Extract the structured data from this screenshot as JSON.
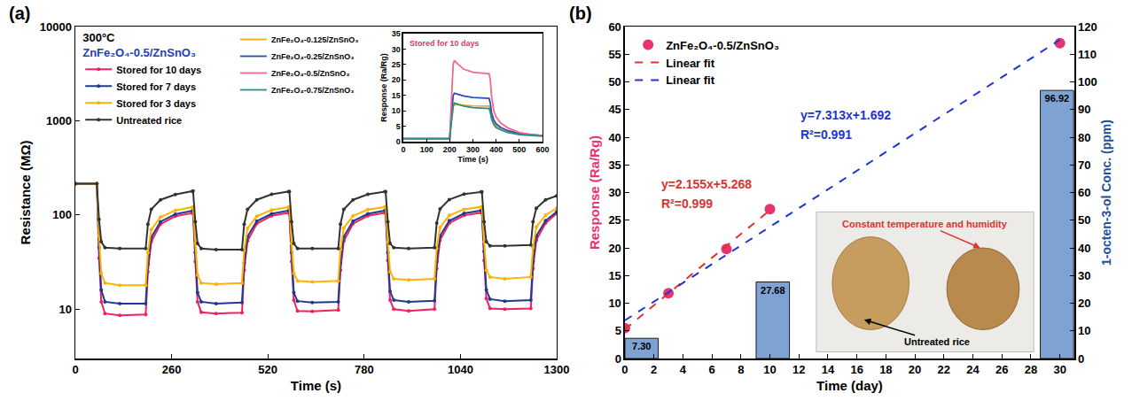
{
  "chart_data": [
    {
      "label": "(a)",
      "type": "line",
      "log": "y",
      "grid": false,
      "legend": "upper left",
      "legend_title": [
        "300°C",
        "ZnFe₂O₄-0.5/ZnSnO₃"
      ],
      "x_label": "Time (s)",
      "y_label": "Resistance (MΩ)",
      "xlim": [
        0,
        1300
      ],
      "xticks": [
        0,
        260,
        520,
        780,
        1040,
        1300
      ],
      "ylim": [
        3,
        10000
      ],
      "yticks": [
        10,
        100,
        1000,
        10000
      ],
      "x": [
        0,
        58,
        64,
        70,
        80,
        120,
        190,
        196,
        205,
        230,
        270,
        316,
        318,
        324,
        330,
        340,
        380,
        450,
        456,
        465,
        490,
        530,
        576,
        578,
        584,
        590,
        600,
        640,
        710,
        716,
        725,
        750,
        790,
        836,
        838,
        844,
        850,
        860,
        900,
        970,
        976,
        985,
        1010,
        1050,
        1096,
        1098,
        1104,
        1110,
        1120,
        1160,
        1230,
        1236,
        1245,
        1270,
        1300
      ],
      "series": [
        {
          "name": "Stored for 10 days",
          "color": "#f0215e",
          "marker": "circle",
          "values": [
            215,
            215,
            35,
            12,
            9,
            8.6,
            8.8,
            25,
            52,
            80,
            97,
            104,
            105,
            32,
            12,
            9.3,
            9,
            9.2,
            26,
            53,
            81,
            98,
            105,
            106,
            32,
            12.5,
            9.6,
            9.5,
            9.8,
            26,
            53,
            81,
            98,
            105,
            106,
            33,
            12.5,
            10,
            9.6,
            10,
            27,
            54,
            82,
            99,
            106,
            106,
            33,
            13,
            10.2,
            10,
            10.2,
            27,
            54,
            82,
            104
          ]
        },
        {
          "name": "Stored for 7 days",
          "color": "#1f3b8f",
          "marker": "circle",
          "values": [
            215,
            215,
            45,
            16,
            12,
            11.5,
            11.5,
            30,
            58,
            85,
            102,
            110,
            111,
            40,
            15,
            12,
            11.5,
            11.8,
            31,
            59,
            86,
            103,
            111,
            112,
            40,
            15,
            12.2,
            11.8,
            12,
            31,
            59,
            86,
            103,
            112,
            112,
            40,
            15.5,
            12.5,
            12,
            12.3,
            32,
            60,
            87,
            104,
            112,
            112,
            41,
            16,
            12.8,
            12.2,
            12.5,
            32,
            60,
            87,
            108
          ]
        },
        {
          "name": "Stored for 3 days",
          "color": "#ffb300",
          "marker": "circle",
          "values": [
            215,
            215,
            60,
            24,
            19,
            18,
            18,
            40,
            70,
            95,
            112,
            120,
            122,
            50,
            23,
            19,
            18.5,
            19,
            42,
            72,
            97,
            113,
            121,
            122,
            50,
            24,
            20,
            19.5,
            20,
            43,
            73,
            98,
            114,
            122,
            122,
            52,
            25,
            21,
            20.5,
            21,
            44,
            74,
            99,
            115,
            122,
            122,
            52,
            26,
            22,
            21,
            22,
            45,
            75,
            100,
            118
          ]
        },
        {
          "name": "Untreated rice",
          "color": "#333333",
          "marker": "circle",
          "values": [
            215,
            215,
            90,
            52,
            45,
            44,
            44,
            80,
            115,
            145,
            165,
            178,
            180,
            85,
            50,
            44,
            43,
            43,
            80,
            115,
            145,
            166,
            177,
            178,
            85,
            50,
            44,
            44,
            44,
            80,
            115,
            145,
            166,
            177,
            177,
            85,
            50,
            45,
            44,
            45,
            82,
            116,
            146,
            167,
            176,
            176,
            85,
            52,
            47,
            47,
            48,
            85,
            118,
            145,
            160
          ]
        }
      ]
    },
    {
      "type": "line",
      "title": "Stored for 10 days",
      "grid": false,
      "legend": "left",
      "x_label": "Time (s)",
      "y_label": "Response (Ra/Rg)",
      "xlim": [
        0,
        600
      ],
      "xticks": [
        0,
        100,
        200,
        300,
        400,
        500,
        600
      ],
      "ylim": [
        0,
        35
      ],
      "yticks": [
        0,
        5,
        10,
        15,
        20,
        25,
        30,
        35
      ],
      "x": [
        0,
        100,
        200,
        205,
        210,
        215,
        220,
        230,
        260,
        300,
        370,
        375,
        380,
        390,
        400,
        420,
        450,
        500,
        550,
        600
      ],
      "series": [
        {
          "name": "ZnFe₂O₄-0.125/ZnSnO₃",
          "color": "#f5a623",
          "values": [
            1,
            1,
            1,
            5,
            9.5,
            11.5,
            12,
            12,
            11.8,
            11.6,
            11.5,
            10,
            8,
            6,
            5,
            4,
            3.2,
            2.5,
            2.1,
            1.9
          ]
        },
        {
          "name": "ZnFe₂O₄-0.25/ZnSnO₃",
          "color": "#2a4fb5",
          "values": [
            1,
            1,
            1,
            6,
            12,
            15,
            15.7,
            15.5,
            14.8,
            14.3,
            14,
            12.5,
            9.5,
            7,
            5.8,
            4.6,
            3.6,
            2.6,
            2.2,
            2
          ]
        },
        {
          "name": "ZnFe₂O₄-0.5/ZnSnO₃",
          "color": "#f06a8a",
          "values": [
            1,
            1,
            1,
            10,
            20,
            25,
            26.3,
            25.5,
            23.5,
            22.5,
            22,
            20,
            15,
            10,
            8,
            6,
            4.5,
            3,
            2.3,
            2
          ]
        },
        {
          "name": "ZnFe₂O₄-0.75/ZnSnO₃",
          "color": "#2e8b8b",
          "values": [
            1,
            1,
            1,
            5,
            9.5,
            11.5,
            12.5,
            12.3,
            11.5,
            11,
            10.7,
            9.5,
            7.5,
            5.5,
            4.6,
            3.8,
            3,
            2.3,
            2,
            1.8
          ]
        }
      ]
    },
    {
      "label": "(b)",
      "type": "scatter",
      "grid": false,
      "legend": "upper left",
      "x_label": "Time (day)",
      "y_label": "Response (Ra/Rg)",
      "y2_label": "1-octen-3-ol Conc. (ppm)",
      "xlim": [
        0,
        31
      ],
      "xticks": [
        0,
        2,
        4,
        6,
        8,
        10,
        12,
        14,
        16,
        18,
        20,
        22,
        24,
        26,
        28,
        30
      ],
      "ylim": [
        0,
        60
      ],
      "yticks": [
        0,
        5,
        10,
        15,
        20,
        25,
        30,
        35,
        40,
        45,
        50,
        55,
        60
      ],
      "y2lim": [
        0,
        120
      ],
      "y2ticks": [
        0,
        10,
        20,
        30,
        40,
        50,
        60,
        70,
        80,
        90,
        100,
        110,
        120
      ],
      "series": [
        {
          "type": "bar",
          "axis": "y2",
          "color": "#7ea2d2",
          "x": [
            1.15,
            10.2,
            29.8
          ],
          "values": [
            7.3,
            27.68,
            96.92
          ],
          "value_labels": [
            "7.30",
            "27.68",
            "96.92"
          ],
          "data_labels": true
        },
        {
          "name": "ZnFe₂O₄-0.5/ZnSnO₃",
          "type": "scatter",
          "color": "#e8336e",
          "marker": "circle",
          "x": [
            0,
            3,
            7,
            10,
            30
          ],
          "values": [
            5.5,
            11.8,
            19.8,
            27.0,
            57.0
          ]
        },
        {
          "name": "Linear fit",
          "type": "line",
          "color": "#e0322f",
          "line_style": "dash",
          "x": [
            0,
            10
          ],
          "values": [
            5.3,
            26.8
          ]
        },
        {
          "name": "Linear fit",
          "type": "line",
          "color": "#1f35d0",
          "line_style": "dash",
          "x": [
            0,
            30
          ],
          "values": [
            6.9,
            57.6
          ]
        }
      ],
      "annotations": [
        "y=2.155x+5.268",
        "R²=0.999",
        "y=7.313x+1.692",
        "R²=0.991",
        "Constant temperature and humidity",
        "Untreated rice"
      ]
    }
  ]
}
